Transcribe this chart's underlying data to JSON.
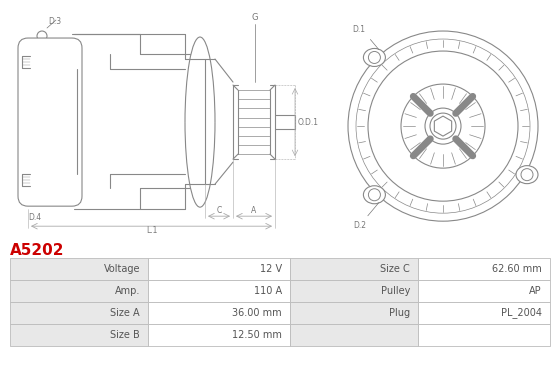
{
  "title": "A5202",
  "title_color": "#cc0000",
  "bg_color": "#ffffff",
  "table_rows": [
    [
      "Voltage",
      "12 V",
      "Size C",
      "62.60 mm"
    ],
    [
      "Amp.",
      "110 A",
      "Pulley",
      "AP"
    ],
    [
      "Size A",
      "36.00 mm",
      "Plug",
      "PL_2004"
    ],
    [
      "Size B",
      "12.50 mm",
      "",
      ""
    ]
  ],
  "header_bg": "#e8e8e8",
  "row_bg": "#ffffff",
  "border_color": "#bbbbbb",
  "text_color": "#555555",
  "diagram_color": "#888888",
  "dim_line_color": "#aaaaaa",
  "label_color": "#777777"
}
